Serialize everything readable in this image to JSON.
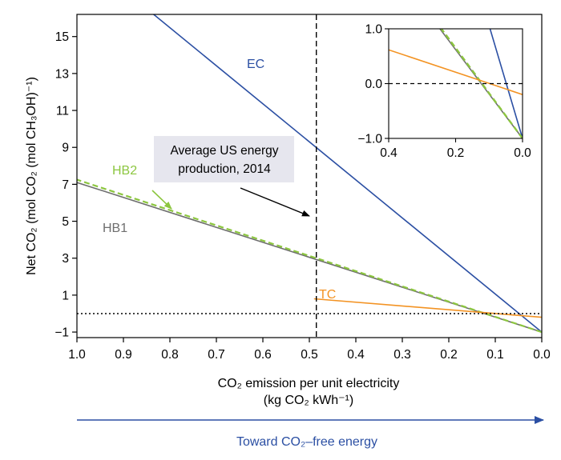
{
  "chart_data": {
    "type": "line",
    "xlabel_line1": "CO₂ emission per unit electricity",
    "xlabel_line2": "(kg CO₂ kWh⁻¹)",
    "ylabel": "Net CO₂ (mol CO₂ (mol CH₃OH)⁻¹)",
    "xlim": [
      1.0,
      0.0
    ],
    "ylim": [
      -1.3,
      16.2
    ],
    "x_ticks": [
      1.0,
      0.9,
      0.8,
      0.7,
      0.6,
      0.5,
      0.4,
      0.3,
      0.2,
      0.1,
      0.0
    ],
    "x_tick_labels": [
      "1.0",
      "0.9",
      "0.8",
      "0.7",
      "0.6",
      "0.5",
      "0.4",
      "0.3",
      "0.2",
      "0.1",
      "0.0"
    ],
    "y_ticks": [
      -1,
      1,
      3,
      5,
      7,
      9,
      11,
      13,
      15
    ],
    "y_tick_labels": [
      "−1",
      "1",
      "3",
      "5",
      "7",
      "9",
      "11",
      "13",
      "15"
    ],
    "series": [
      {
        "name": "EC",
        "color": "#2b4fa3",
        "style": "solid",
        "x": [
          0.0,
          1.0
        ],
        "y": [
          -1.0,
          19.6
        ]
      },
      {
        "name": "HB1",
        "color": "#6e6e6e",
        "style": "solid",
        "x": [
          0.0,
          1.0
        ],
        "y": [
          -1.0,
          7.1
        ]
      },
      {
        "name": "HB2",
        "color": "#8cc63f",
        "style": "dashed",
        "x": [
          0.0,
          1.0
        ],
        "y": [
          -1.0,
          7.25
        ]
      },
      {
        "name": "TC",
        "color": "#f39323",
        "style": "solid",
        "x": [
          0.0,
          0.49
        ],
        "y": [
          -0.2,
          0.8
        ]
      }
    ],
    "reference_lines": [
      {
        "orientation": "horizontal",
        "value": 0,
        "style": "dotted"
      },
      {
        "orientation": "vertical",
        "value": 0.485,
        "style": "dashed"
      }
    ],
    "annotation": {
      "line1": "Average US energy",
      "line2": "production, 2014"
    },
    "inset": {
      "xlim": [
        0.4,
        0.0
      ],
      "ylim": [
        -1.0,
        1.0
      ],
      "x_tick_labels": [
        "0.4",
        "0.2",
        "0.0"
      ],
      "y_tick_labels": [
        "1.0",
        "0.0",
        "−1.0"
      ]
    },
    "arrow_caption": "Toward CO₂–free energy"
  },
  "colors": {
    "arrow": "#2b4fa3",
    "annotation_box": "#e6e6ee"
  }
}
